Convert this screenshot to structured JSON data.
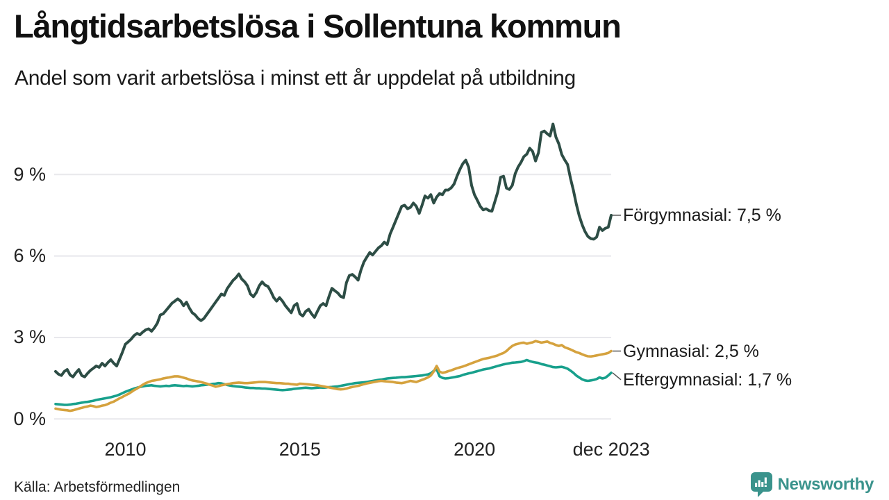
{
  "header": {
    "title": "Långtidsarbetslösa i Sollentuna kommun",
    "subtitle": "Andel som varit arbetslösa i minst ett år uppdelat på utbildning"
  },
  "footer": {
    "source": "Källa: Arbetsförmedlingen",
    "brand": "Newsworthy"
  },
  "colors": {
    "forgymnasial": "#2d4d45",
    "gymnasial": "#d5a23e",
    "eftergymnasial": "#18a08c",
    "gridline": "#e8e8ec",
    "brand_teal": "#3a938c",
    "connector": "#555555"
  },
  "chart_data": {
    "type": "line",
    "title": "Långtidsarbetslösa i Sollentuna kommun",
    "subtitle": "Andel som varit arbetslösa i minst ett år uppdelat på utbildning",
    "x_start": 2008.0,
    "x_end": 2023.9167,
    "points_per_year": 12,
    "ylim": [
      0,
      11.6
    ],
    "grid": true,
    "legend_position": "end-of-line-labels",
    "yticks": [
      {
        "v": 0,
        "label": "0 %"
      },
      {
        "v": 3,
        "label": "3 %"
      },
      {
        "v": 6,
        "label": "6 %"
      },
      {
        "v": 9,
        "label": "9 %"
      }
    ],
    "xticks": [
      {
        "t": 2010,
        "label": "2010"
      },
      {
        "t": 2015,
        "label": "2015"
      },
      {
        "t": 2020,
        "label": "2020"
      },
      {
        "t": 2023.92,
        "label": "dec 2023"
      }
    ],
    "series": [
      {
        "name": "Förgymnasial",
        "color": "#2d4d45",
        "stroke_width": 4,
        "end_value": 7.5,
        "end_label": "Förgymnasial: 7,5 %",
        "label_dy": 0,
        "values": [
          1.75,
          1.65,
          1.6,
          1.75,
          1.82,
          1.62,
          1.55,
          1.7,
          1.82,
          1.6,
          1.55,
          1.68,
          1.79,
          1.87,
          1.95,
          1.9,
          2.05,
          1.95,
          2.08,
          2.18,
          2.05,
          1.95,
          2.2,
          2.46,
          2.75,
          2.84,
          2.94,
          3.07,
          3.15,
          3.1,
          3.2,
          3.28,
          3.32,
          3.23,
          3.36,
          3.53,
          3.83,
          3.87,
          4.0,
          4.13,
          4.26,
          4.34,
          4.42,
          4.34,
          4.17,
          4.3,
          4.08,
          3.91,
          3.83,
          3.7,
          3.62,
          3.7,
          3.85,
          4.0,
          4.15,
          4.3,
          4.45,
          4.6,
          4.55,
          4.8,
          4.95,
          5.1,
          5.2,
          5.34,
          5.15,
          5.05,
          4.9,
          4.6,
          4.5,
          4.65,
          4.9,
          5.05,
          4.93,
          4.88,
          4.7,
          4.47,
          4.34,
          4.47,
          4.34,
          4.17,
          4.04,
          3.91,
          4.17,
          4.25,
          3.87,
          3.79,
          3.96,
          4.04,
          3.87,
          3.74,
          3.96,
          4.17,
          4.25,
          4.17,
          4.51,
          4.81,
          4.72,
          4.64,
          4.51,
          4.47,
          5.02,
          5.28,
          5.32,
          5.23,
          5.11,
          5.49,
          5.78,
          5.96,
          6.13,
          6.04,
          6.17,
          6.3,
          6.38,
          6.51,
          6.42,
          6.81,
          7.06,
          7.32,
          7.57,
          7.83,
          7.87,
          7.74,
          7.79,
          7.95,
          7.83,
          7.57,
          7.87,
          8.21,
          8.13,
          8.26,
          7.95,
          8.17,
          8.3,
          8.26,
          8.43,
          8.43,
          8.51,
          8.65,
          8.94,
          9.19,
          9.4,
          9.53,
          9.27,
          8.6,
          8.26,
          8.05,
          7.83,
          7.7,
          7.74,
          7.67,
          7.65,
          8.0,
          8.35,
          8.9,
          8.94,
          8.5,
          8.45,
          8.6,
          9.03,
          9.28,
          9.45,
          9.66,
          9.75,
          9.97,
          9.85,
          9.5,
          9.8,
          10.55,
          10.6,
          10.5,
          10.42,
          10.86,
          10.38,
          10.13,
          9.74,
          9.54,
          9.37,
          8.86,
          8.43,
          7.92,
          7.49,
          7.16,
          6.9,
          6.72,
          6.64,
          6.62,
          6.7,
          7.06,
          6.94,
          7.02,
          7.06,
          7.5
        ]
      },
      {
        "name": "Gymnasial",
        "color": "#d5a23e",
        "stroke_width": 3.6,
        "end_value": 2.5,
        "end_label": "Gymnasial: 2,5 %",
        "label_dy": 0,
        "values": [
          0.38,
          0.36,
          0.34,
          0.33,
          0.32,
          0.3,
          0.32,
          0.35,
          0.38,
          0.41,
          0.44,
          0.46,
          0.49,
          0.47,
          0.44,
          0.46,
          0.49,
          0.51,
          0.55,
          0.6,
          0.64,
          0.7,
          0.76,
          0.81,
          0.87,
          0.92,
          0.99,
          1.06,
          1.12,
          1.19,
          1.26,
          1.32,
          1.36,
          1.4,
          1.42,
          1.44,
          1.46,
          1.49,
          1.51,
          1.53,
          1.55,
          1.57,
          1.57,
          1.55,
          1.52,
          1.49,
          1.45,
          1.42,
          1.4,
          1.38,
          1.36,
          1.33,
          1.3,
          1.26,
          1.23,
          1.19,
          1.21,
          1.24,
          1.26,
          1.28,
          1.3,
          1.32,
          1.33,
          1.34,
          1.33,
          1.32,
          1.32,
          1.33,
          1.34,
          1.35,
          1.36,
          1.36,
          1.36,
          1.35,
          1.34,
          1.33,
          1.32,
          1.32,
          1.31,
          1.3,
          1.3,
          1.28,
          1.27,
          1.26,
          1.3,
          1.29,
          1.28,
          1.27,
          1.26,
          1.25,
          1.24,
          1.22,
          1.2,
          1.18,
          1.16,
          1.14,
          1.12,
          1.1,
          1.09,
          1.1,
          1.12,
          1.15,
          1.18,
          1.2,
          1.22,
          1.25,
          1.28,
          1.31,
          1.33,
          1.35,
          1.37,
          1.39,
          1.4,
          1.39,
          1.38,
          1.37,
          1.36,
          1.34,
          1.33,
          1.32,
          1.34,
          1.37,
          1.4,
          1.38,
          1.36,
          1.4,
          1.44,
          1.48,
          1.53,
          1.6,
          1.75,
          1.95,
          1.74,
          1.7,
          1.72,
          1.76,
          1.79,
          1.83,
          1.87,
          1.9,
          1.93,
          1.97,
          2.01,
          2.05,
          2.09,
          2.13,
          2.17,
          2.21,
          2.23,
          2.25,
          2.28,
          2.31,
          2.34,
          2.39,
          2.43,
          2.5,
          2.6,
          2.69,
          2.74,
          2.77,
          2.8,
          2.81,
          2.77,
          2.8,
          2.82,
          2.87,
          2.84,
          2.81,
          2.83,
          2.85,
          2.8,
          2.77,
          2.72,
          2.69,
          2.72,
          2.64,
          2.6,
          2.56,
          2.51,
          2.46,
          2.43,
          2.38,
          2.34,
          2.31,
          2.3,
          2.32,
          2.34,
          2.36,
          2.38,
          2.4,
          2.43,
          2.5
        ]
      },
      {
        "name": "Eftergymnasial",
        "color": "#18a08c",
        "stroke_width": 3.6,
        "end_value": 1.7,
        "end_label": "Eftergymnasial: 1,7 %",
        "label_dy": 10,
        "values": [
          0.55,
          0.54,
          0.53,
          0.52,
          0.52,
          0.53,
          0.55,
          0.56,
          0.58,
          0.6,
          0.62,
          0.63,
          0.65,
          0.67,
          0.7,
          0.72,
          0.74,
          0.76,
          0.78,
          0.8,
          0.83,
          0.86,
          0.9,
          0.95,
          1.0,
          1.04,
          1.08,
          1.12,
          1.15,
          1.18,
          1.2,
          1.22,
          1.23,
          1.24,
          1.22,
          1.21,
          1.2,
          1.21,
          1.22,
          1.21,
          1.23,
          1.24,
          1.23,
          1.22,
          1.21,
          1.22,
          1.21,
          1.2,
          1.21,
          1.22,
          1.24,
          1.25,
          1.26,
          1.27,
          1.29,
          1.3,
          1.32,
          1.31,
          1.28,
          1.25,
          1.23,
          1.21,
          1.2,
          1.19,
          1.18,
          1.16,
          1.15,
          1.14,
          1.14,
          1.13,
          1.13,
          1.12,
          1.12,
          1.11,
          1.1,
          1.09,
          1.08,
          1.07,
          1.06,
          1.07,
          1.08,
          1.09,
          1.11,
          1.12,
          1.13,
          1.14,
          1.15,
          1.14,
          1.13,
          1.14,
          1.15,
          1.16,
          1.15,
          1.16,
          1.17,
          1.18,
          1.19,
          1.2,
          1.22,
          1.24,
          1.26,
          1.28,
          1.3,
          1.32,
          1.33,
          1.34,
          1.35,
          1.36,
          1.38,
          1.4,
          1.42,
          1.44,
          1.45,
          1.47,
          1.49,
          1.5,
          1.51,
          1.52,
          1.53,
          1.54,
          1.54,
          1.55,
          1.56,
          1.57,
          1.58,
          1.59,
          1.6,
          1.62,
          1.64,
          1.68,
          1.77,
          1.83,
          1.57,
          1.51,
          1.49,
          1.5,
          1.52,
          1.54,
          1.56,
          1.58,
          1.62,
          1.65,
          1.68,
          1.7,
          1.73,
          1.76,
          1.79,
          1.82,
          1.84,
          1.86,
          1.89,
          1.92,
          1.95,
          1.98,
          2.01,
          2.03,
          2.05,
          2.07,
          2.08,
          2.09,
          2.1,
          2.13,
          2.17,
          2.13,
          2.1,
          2.08,
          2.06,
          2.02,
          2.0,
          1.97,
          1.94,
          1.91,
          1.9,
          1.91,
          1.92,
          1.89,
          1.85,
          1.78,
          1.7,
          1.6,
          1.53,
          1.46,
          1.42,
          1.4,
          1.42,
          1.44,
          1.47,
          1.53,
          1.49,
          1.52,
          1.6,
          1.7
        ]
      }
    ]
  }
}
